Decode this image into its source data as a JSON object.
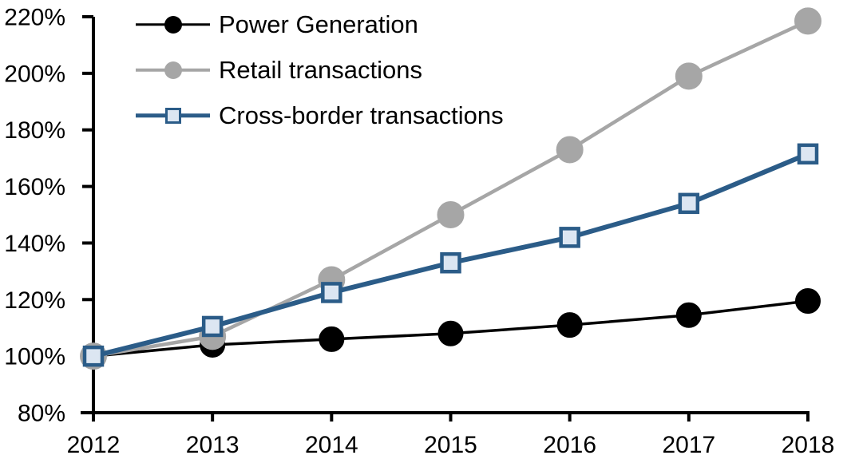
{
  "chart_data": {
    "type": "line",
    "x_categories": [
      "2012",
      "2013",
      "2014",
      "2015",
      "2016",
      "2017",
      "2018"
    ],
    "y_axis": {
      "min": 80,
      "max": 220,
      "tick_step": 20,
      "suffix": "%",
      "ticks": [
        {
          "value": 220,
          "label": "220%"
        },
        {
          "value": 200,
          "label": "200%"
        },
        {
          "value": 180,
          "label": "180%"
        },
        {
          "value": 160,
          "label": "160%"
        },
        {
          "value": 140,
          "label": "140%"
        },
        {
          "value": 120,
          "label": "120%"
        },
        {
          "value": 100,
          "label": "100%"
        },
        {
          "value": 80,
          "label": "80%"
        }
      ]
    },
    "grid": false,
    "legend_position": "top-left",
    "series": [
      {
        "name": "Power Generation",
        "marker": "circle",
        "line_color": "#000000",
        "marker_fill": "#000000",
        "marker_stroke": "#000000",
        "values": [
          100,
          104,
          106,
          108,
          111,
          114.5,
          119.5
        ]
      },
      {
        "name": "Retail transactions",
        "marker": "circle",
        "line_color": "#a6a6a6",
        "marker_fill": "#a6a6a6",
        "marker_stroke": "#a6a6a6",
        "values": [
          100,
          107,
          127,
          150,
          173,
          199,
          218.5
        ]
      },
      {
        "name": "Cross-border transactions",
        "marker": "square",
        "line_color": "#2b5c88",
        "marker_fill": "#dce6f2",
        "marker_stroke": "#2b5c88",
        "values": [
          100,
          110.5,
          122.5,
          133,
          142,
          154,
          171.5
        ]
      }
    ],
    "axis_color": "#000000",
    "background_color": "#ffffff"
  }
}
